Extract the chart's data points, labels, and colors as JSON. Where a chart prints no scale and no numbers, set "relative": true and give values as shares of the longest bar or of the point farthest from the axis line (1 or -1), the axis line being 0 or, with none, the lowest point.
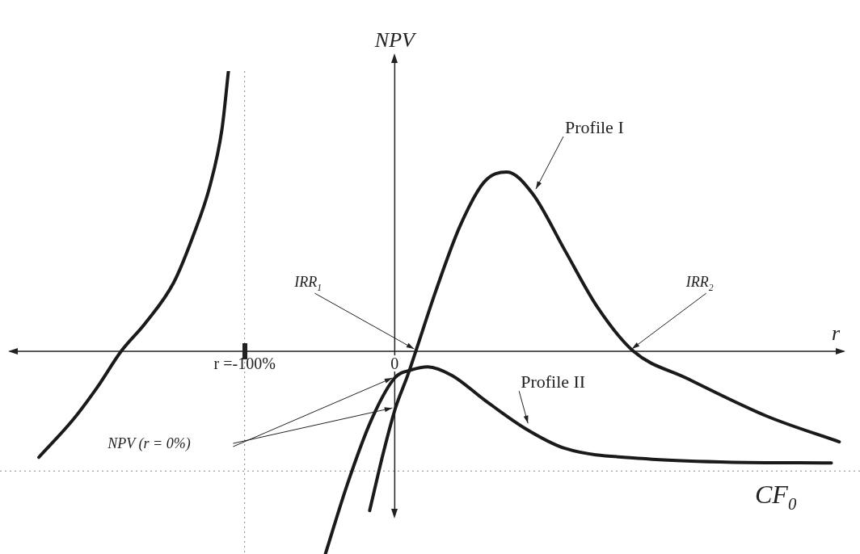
{
  "chart_data": {
    "type": "line",
    "relative": true,
    "xlabel": "r",
    "ylabel": "NPV",
    "xlim": [
      -263,
      310
    ],
    "xticks": [
      {
        "value": -100,
        "label": "r =-100%"
      },
      {
        "value": 0,
        "label": "0"
      }
    ],
    "series": [
      {
        "color": "#1a1a1a",
        "x": [
          -237.1,
          -214.5,
          -198.4,
          -182.3,
          -166.1,
          -147.3,
          -133.9,
          -123.1,
          -115.1,
          -110.8
        ],
        "values": [
          -0.378,
          -0.245,
          -0.13,
          0,
          0.101,
          0.245,
          0.418,
          0.591,
          0.793,
          1.0
        ]
      },
      {
        "name": "Profile I",
        "color": "#1a1a1a",
        "x": [
          -16.7,
          -7.5,
          0.5,
          8.6,
          14.0,
          27.4,
          43.5,
          59.7,
          74.7,
          91.9,
          113.4,
          134.9,
          159.1,
          194.1,
          247.8,
          296.2
        ],
        "values": [
          -0.568,
          -0.36,
          -0.202,
          -0.086,
          0,
          0.216,
          0.447,
          0.605,
          0.64,
          0.562,
          0.36,
          0.159,
          0,
          -0.095,
          -0.231,
          -0.323
        ]
      },
      {
        "name": "Profile II",
        "color": "#1a1a1a",
        "x": [
          -46.2,
          -31.7,
          -15.6,
          0,
          11.3,
          22.0,
          38.2,
          59.7,
          86.6,
          113.4,
          167.2,
          221.0,
          290.9
        ],
        "values": [
          -0.723,
          -0.476,
          -0.245,
          -0.095,
          -0.066,
          -0.055,
          -0.086,
          -0.173,
          -0.274,
          -0.346,
          -0.383,
          -0.395,
          -0.398
        ]
      }
    ],
    "ref_lines": [
      {
        "axis": "x",
        "value": -100,
        "line_style": "dotted",
        "color": "#888888"
      },
      {
        "axis": "y",
        "value": -0.427,
        "label": "CF$_{0}$",
        "line_style": "dotted",
        "color": "#888888"
      }
    ],
    "annotations": [
      {
        "text": "IRR$_{1}$",
        "x": 14.0,
        "y": 0
      },
      {
        "text": "IRR$_{2}$",
        "x": 159.1,
        "y": 0
      },
      "NPV (r = 0%)"
    ],
    "legend": false,
    "marker": "none",
    "line_style": "solid"
  }
}
